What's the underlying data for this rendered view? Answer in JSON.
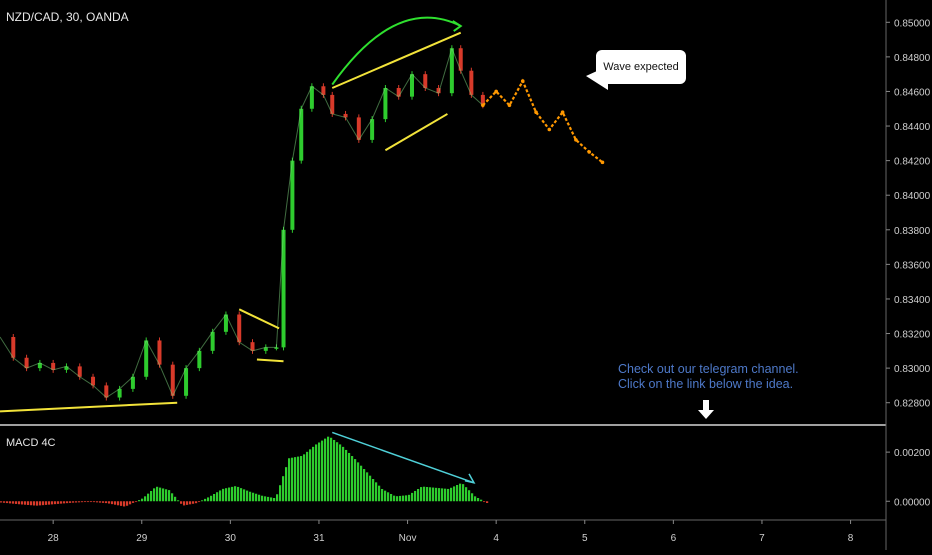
{
  "header": {
    "symbol_title": "NZD/CAD, 30, OANDA"
  },
  "indicator": {
    "name": "MACD 4C"
  },
  "annotations": {
    "bubble_text": "Wave expected",
    "note_line1": "Check out our telegram channel.",
    "note_line2": "Click on the link below the idea."
  },
  "colors": {
    "background": "#000000",
    "up": "#2ecc2e",
    "down": "#d83a2a",
    "projection": "#ff9800",
    "trendline": "#f2e33a",
    "arc": "#2fe02f",
    "divergence": "#4fd0d8",
    "note": "#4e79c9",
    "axis_text": "#d0d0d0"
  },
  "chart_data": [
    {
      "type": "line",
      "ylim": [
        0.827,
        0.851
      ],
      "yticks": [
        "0.85000",
        "0.84800",
        "0.84600",
        "0.84400",
        "0.84200",
        "0.84000",
        "0.83800",
        "0.83600",
        "0.83400",
        "0.83200",
        "0.83000",
        "0.82800"
      ],
      "ytick_values": [
        0.85,
        0.848,
        0.846,
        0.844,
        0.842,
        0.84,
        0.838,
        0.836,
        0.834,
        0.832,
        0.83,
        0.828
      ],
      "x_labels": [
        "28",
        "29",
        "30",
        "31",
        "Nov",
        "4",
        "5",
        "6",
        "7",
        "8"
      ],
      "x_label_positions": [
        28,
        29,
        30,
        31,
        32,
        33,
        34,
        35,
        36,
        37
      ],
      "xlim": [
        27.4,
        37.4
      ],
      "series": [
        {
          "values_x": [
            27.4,
            27.55,
            27.7,
            27.85,
            28.0,
            28.15,
            28.3,
            28.45,
            28.6,
            28.75,
            28.9,
            29.05,
            29.2,
            29.35,
            29.5,
            29.65,
            29.8,
            29.95,
            30.1,
            30.25,
            30.4,
            30.52,
            30.6,
            30.7,
            30.8,
            30.92,
            31.05,
            31.15,
            31.3,
            31.45,
            31.6,
            31.75,
            31.9,
            32.05,
            32.2,
            32.35,
            32.5,
            32.6,
            32.72,
            32.85
          ],
          "values_y": [
            0.8318,
            0.8306,
            0.83,
            0.8303,
            0.8299,
            0.8301,
            0.8295,
            0.829,
            0.8283,
            0.8288,
            0.8295,
            0.8316,
            0.8302,
            0.8284,
            0.83,
            0.831,
            0.8321,
            0.8331,
            0.8315,
            0.831,
            0.8312,
            0.8312,
            0.838,
            0.842,
            0.845,
            0.8463,
            0.8458,
            0.8447,
            0.8445,
            0.8432,
            0.8444,
            0.8462,
            0.8457,
            0.847,
            0.8462,
            0.8459,
            0.8485,
            0.8472,
            0.8458,
            0.8452
          ]
        },
        {
          "name": "",
          "projection": true,
          "values_x": [
            32.85,
            33.0,
            33.15,
            33.3,
            33.45,
            33.6,
            33.75,
            33.9,
            34.05,
            34.2
          ],
          "values_y": [
            0.8452,
            0.846,
            0.8452,
            0.8466,
            0.8448,
            0.8438,
            0.8448,
            0.8432,
            0.8425,
            0.8419
          ]
        }
      ],
      "drawings": {
        "trendlines": [
          {
            "x": [
              27.4,
              29.4
            ],
            "y": [
              0.8275,
              0.828
            ]
          },
          {
            "x": [
              30.1,
              30.55
            ],
            "y": [
              0.8334,
              0.8323
            ]
          },
          {
            "x": [
              30.3,
              30.6
            ],
            "y": [
              0.8305,
              0.8304
            ]
          },
          {
            "x": [
              31.15,
              32.6
            ],
            "y": [
              0.8462,
              0.8494
            ]
          },
          {
            "x": [
              31.75,
              32.45
            ],
            "y": [
              0.8426,
              0.8447
            ]
          }
        ],
        "arc": {
          "x": [
            31.15,
            32.6
          ],
          "y": [
            0.8462,
            0.8499
          ]
        }
      }
    },
    {
      "type": "bar",
      "title": "MACD 4C",
      "ylim": [
        -0.0006,
        0.0029
      ],
      "yticks": [
        "0.00200",
        "0.00000"
      ],
      "ytick_values": [
        0.002,
        0.0
      ],
      "xlim": [
        27.4,
        37.4
      ],
      "x": [
        27.4,
        27.6,
        27.8,
        28.0,
        28.2,
        28.4,
        28.6,
        28.8,
        29.0,
        29.15,
        29.3,
        29.45,
        29.6,
        29.75,
        29.9,
        30.05,
        30.2,
        30.35,
        30.5,
        30.65,
        30.8,
        30.95,
        31.1,
        31.25,
        31.4,
        31.55,
        31.7,
        31.85,
        32.0,
        32.15,
        32.3,
        32.45,
        32.6,
        32.75,
        32.9
      ],
      "values": [
        -5e-05,
        -0.00012,
        -0.00018,
        -0.00012,
        -6e-05,
        -2e-05,
        -8e-05,
        -0.00022,
        0.00012,
        0.0006,
        0.00045,
        -0.00018,
        -8e-05,
        0.00018,
        0.0005,
        0.00062,
        0.0004,
        0.00022,
        0.00012,
        0.00175,
        0.00185,
        0.0023,
        0.00265,
        0.00225,
        0.0017,
        0.0011,
        0.0005,
        0.0002,
        0.00025,
        0.0006,
        0.00055,
        0.0005,
        0.00075,
        0.0002,
        -0.0001
      ],
      "divergence": {
        "x": [
          31.15,
          32.75
        ],
        "y": [
          0.0028,
          0.00075
        ]
      }
    }
  ]
}
